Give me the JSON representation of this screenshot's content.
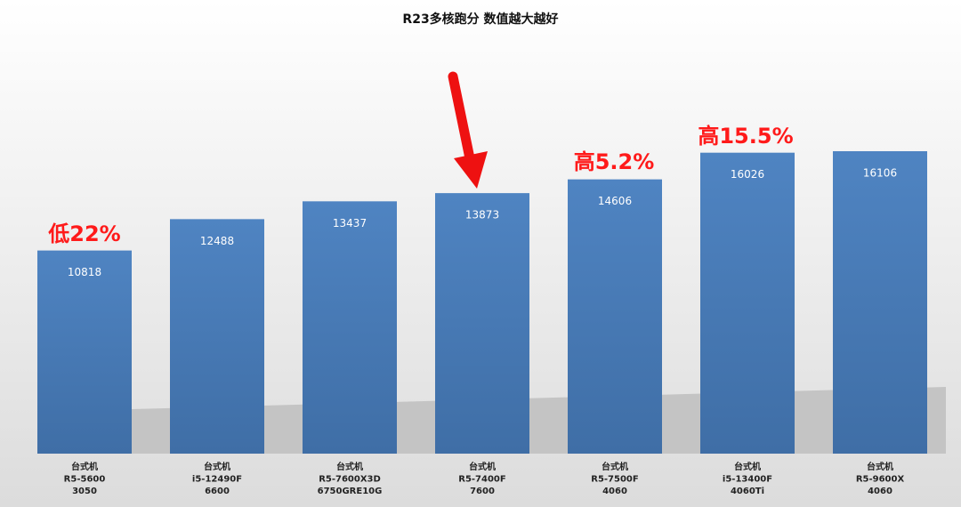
{
  "chart_data": {
    "type": "bar",
    "title": "R23多核跑分 数值越大越好",
    "categories": [
      [
        "台式机",
        "R5-5600",
        "3050"
      ],
      [
        "台式机",
        "i5-12490F",
        "6600"
      ],
      [
        "台式机",
        "R5-7600X3D",
        "6750GRE10G"
      ],
      [
        "台式机",
        "R5-7400F",
        "7600"
      ],
      [
        "台式机",
        "R5-7500F",
        "4060"
      ],
      [
        "台式机",
        "i5-13400F",
        "4060Ti"
      ],
      [
        "台式机",
        "R5-9600X",
        "4060"
      ]
    ],
    "values": [
      10818,
      12488,
      13437,
      13873,
      14606,
      16026,
      16106
    ],
    "color": "#4a7ebb",
    "ylim": [
      0,
      18000
    ],
    "annotations": [
      "低22%",
      "高5.2%",
      "高15.5%"
    ]
  }
}
